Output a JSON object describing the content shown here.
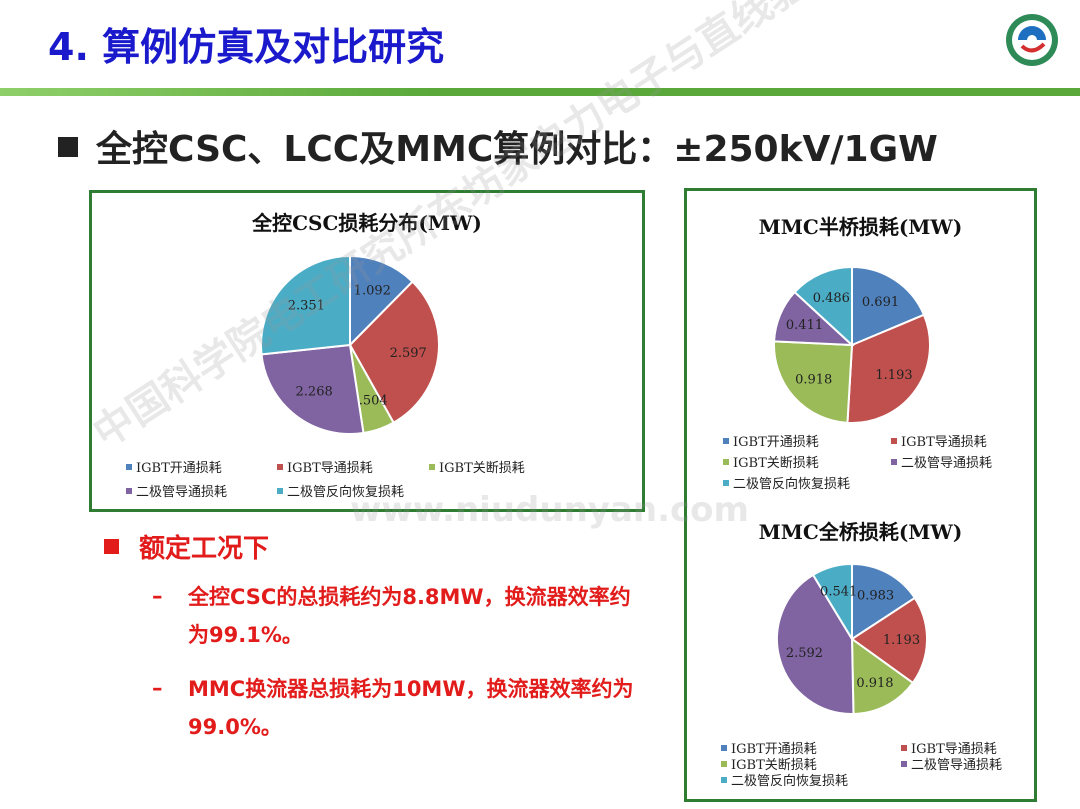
{
  "slide": {
    "title": "4. 算例仿真及对比研究",
    "heading": "全控CSC、LCC及MMC算例对比：±250kV/1GW",
    "section_label": "额定工况下",
    "points": [
      "全控CSC的总损耗约为8.8MW，换流器效率约为99.1%。",
      "MMC换流器总损耗为10MW，换流器效率约为99.0%。"
    ],
    "watermark_1": "中国科学院电工研究所东坊家电力电子与直线驱动技术研究部",
    "watermark_2": "www.niudunyan.com"
  },
  "colors": {
    "blue": "#4f81bd",
    "red": "#c0504d",
    "green": "#9bbb59",
    "purple": "#8064a2",
    "teal": "#4bacc6",
    "title_blue": "#1a1acc",
    "accent_red": "#e21b1b",
    "panel_border": "#2e7d32"
  },
  "chart_data": [
    {
      "type": "pie",
      "title": "全控CSC损耗分布(MW)",
      "categories": [
        "IGBT开通损耗",
        "IGBT导通损耗",
        "IGBT关断损耗",
        "二极管导通损耗",
        "二极管反向恢复损耗"
      ],
      "values": [
        1.092,
        2.597,
        0.504,
        2.268,
        2.351
      ],
      "labels": [
        "1.092",
        "2.597",
        "0.504",
        "2.268",
        "2.351"
      ]
    },
    {
      "type": "pie",
      "title": "MMC半桥损耗(MW)",
      "categories": [
        "IGBT开通损耗",
        "IGBT导通损耗",
        "IGBT关断损耗",
        "二极管导通损耗",
        "二极管反向恢复损耗"
      ],
      "values": [
        0.691,
        1.193,
        0.918,
        0.411,
        0.486
      ],
      "labels": [
        "0.691",
        "1.193",
        "0.918",
        "0.411",
        "0.486"
      ]
    },
    {
      "type": "pie",
      "title": "MMC全桥损耗(MW)",
      "categories": [
        "IGBT开通损耗",
        "IGBT导通损耗",
        "IGBT关断损耗",
        "二极管导通损耗",
        "二极管反向恢复损耗"
      ],
      "values": [
        0.983,
        1.193,
        0.918,
        2.592,
        0.541
      ],
      "labels": [
        "0.983",
        "1.193",
        "0.918",
        "2.592",
        "0.541"
      ]
    }
  ]
}
